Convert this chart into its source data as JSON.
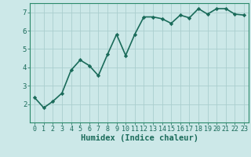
{
  "x": [
    0,
    1,
    2,
    3,
    4,
    5,
    6,
    7,
    8,
    9,
    10,
    11,
    12,
    13,
    14,
    15,
    16,
    17,
    18,
    19,
    20,
    21,
    22,
    23
  ],
  "y": [
    2.35,
    1.8,
    2.15,
    2.6,
    3.85,
    4.4,
    4.1,
    3.55,
    4.7,
    5.8,
    4.65,
    5.8,
    6.75,
    6.75,
    6.65,
    6.4,
    6.85,
    6.7,
    7.2,
    6.9,
    7.2,
    7.2,
    6.9,
    6.85
  ],
  "line_color": "#1a6b5a",
  "marker": "D",
  "marker_size": 2.2,
  "bg_color": "#cce8e8",
  "grid_color": "#aacece",
  "xlabel": "Humidex (Indice chaleur)",
  "tick_color": "#1a6b5a",
  "ylim": [
    1.0,
    7.5
  ],
  "xlim": [
    -0.5,
    23.5
  ],
  "yticks": [
    2,
    3,
    4,
    5,
    6,
    7
  ],
  "xticks": [
    0,
    1,
    2,
    3,
    4,
    5,
    6,
    7,
    8,
    9,
    10,
    11,
    12,
    13,
    14,
    15,
    16,
    17,
    18,
    19,
    20,
    21,
    22,
    23
  ],
  "spine_color": "#2a8a6a",
  "line_width": 1.2,
  "tick_fontsize": 6.0,
  "xlabel_fontsize": 7.5
}
